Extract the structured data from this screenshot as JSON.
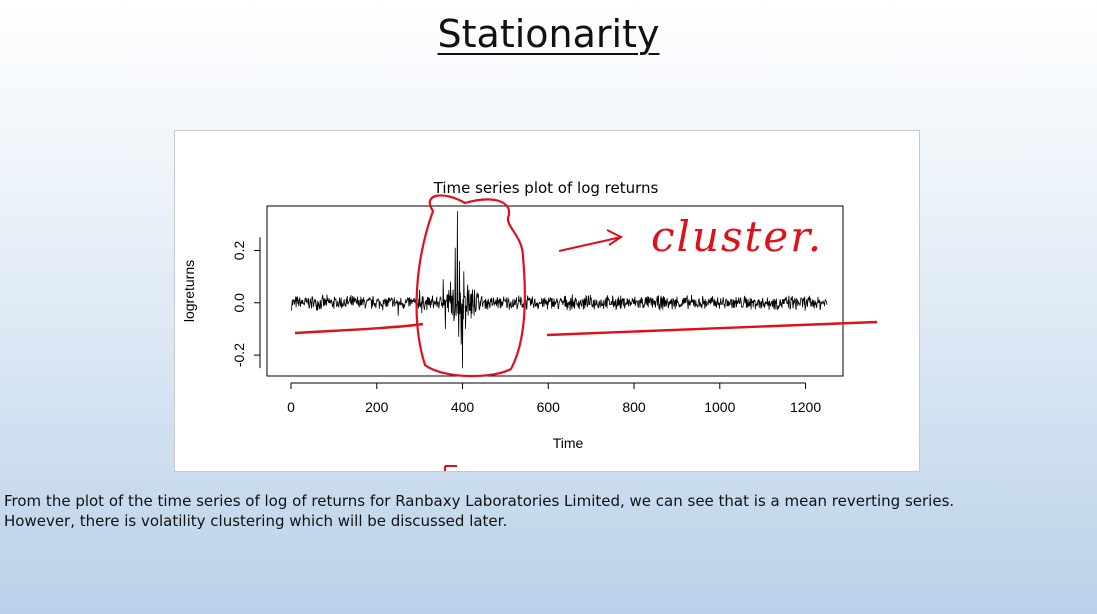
{
  "slide": {
    "title": "Stationarity",
    "caption_line1": "From the plot of the time series of log of returns for Ranbaxy Laboratories Limited, we can see that is a mean reverting series.",
    "caption_line2": "However, there is volatility clustering which will be discussed later."
  },
  "annotations": {
    "cluster_text": "cluster.",
    "ink_color": "#e0101a"
  },
  "chart_data": {
    "type": "line",
    "title": "Time series plot of log returns",
    "xlabel": "Time",
    "ylabel": "logreturns",
    "xlim": [
      0,
      1250
    ],
    "ylim": [
      -0.28,
      0.37
    ],
    "xticks": [
      0,
      200,
      400,
      600,
      800,
      1000,
      1200
    ],
    "xtick_labels": [
      "0",
      "200",
      "400",
      "600",
      "800",
      "1000",
      "1200"
    ],
    "yticks": [
      -0.2,
      0.0,
      0.2
    ],
    "ytick_labels": [
      "-0.2",
      "0.0",
      "0.2"
    ],
    "grid": false,
    "line_color": "#000000",
    "series": [
      {
        "x": [
          1,
          1250
        ],
        "values": [
          0.0,
          0.0
        ],
        "typical_abs_return": 0.02,
        "extreme_points": [
          {
            "x": 300,
            "y": 0.05
          },
          {
            "x": 305,
            "y": -0.04
          },
          {
            "x": 355,
            "y": 0.09
          },
          {
            "x": 360,
            "y": -0.1
          },
          {
            "x": 372,
            "y": 0.08
          },
          {
            "x": 380,
            "y": -0.07
          },
          {
            "x": 383,
            "y": 0.21
          },
          {
            "x": 385,
            "y": -0.05
          },
          {
            "x": 388,
            "y": 0.35
          },
          {
            "x": 391,
            "y": -0.13
          },
          {
            "x": 393,
            "y": 0.16
          },
          {
            "x": 397,
            "y": -0.16
          },
          {
            "x": 400,
            "y": -0.25
          },
          {
            "x": 403,
            "y": 0.12
          },
          {
            "x": 407,
            "y": -0.1
          },
          {
            "x": 412,
            "y": 0.07
          },
          {
            "x": 420,
            "y": -0.06
          },
          {
            "x": 428,
            "y": 0.05
          },
          {
            "x": 250,
            "y": -0.05
          }
        ]
      }
    ]
  }
}
